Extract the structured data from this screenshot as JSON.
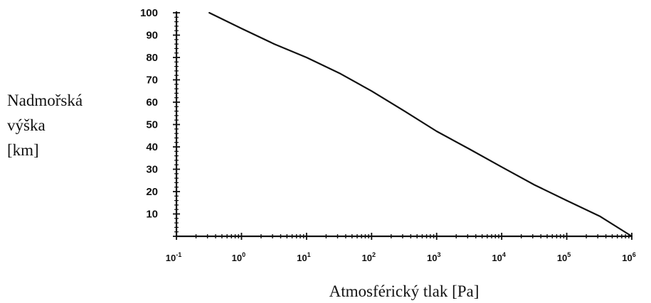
{
  "chart_data": {
    "type": "line",
    "xlabel": "Atmosférický tlak [Pa]",
    "ylabel_lines": [
      "Nadmořská",
      "výška",
      "[km]"
    ],
    "x_scale": "log",
    "xlim": [
      0.1,
      1000000
    ],
    "ylim": [
      0,
      100
    ],
    "x_ticks": [
      {
        "base": "10",
        "exp": "-1"
      },
      {
        "base": "10",
        "exp": "0"
      },
      {
        "base": "10",
        "exp": "1"
      },
      {
        "base": "10",
        "exp": "2"
      },
      {
        "base": "10",
        "exp": "3"
      },
      {
        "base": "10",
        "exp": "4"
      },
      {
        "base": "10",
        "exp": "5"
      },
      {
        "base": "10",
        "exp": "6"
      }
    ],
    "y_ticks": [
      10,
      20,
      30,
      40,
      50,
      60,
      70,
      80,
      90,
      100
    ],
    "grid": false,
    "series": [
      {
        "color": "#111111",
        "x": [
          0.32,
          1,
          3.2,
          10,
          32,
          100,
          320,
          1000,
          3200,
          10000,
          32000,
          100000,
          320000,
          1000000
        ],
        "y": [
          100,
          93,
          86,
          80,
          73,
          65,
          56,
          47,
          39,
          31,
          23,
          16,
          9,
          0
        ]
      }
    ]
  }
}
